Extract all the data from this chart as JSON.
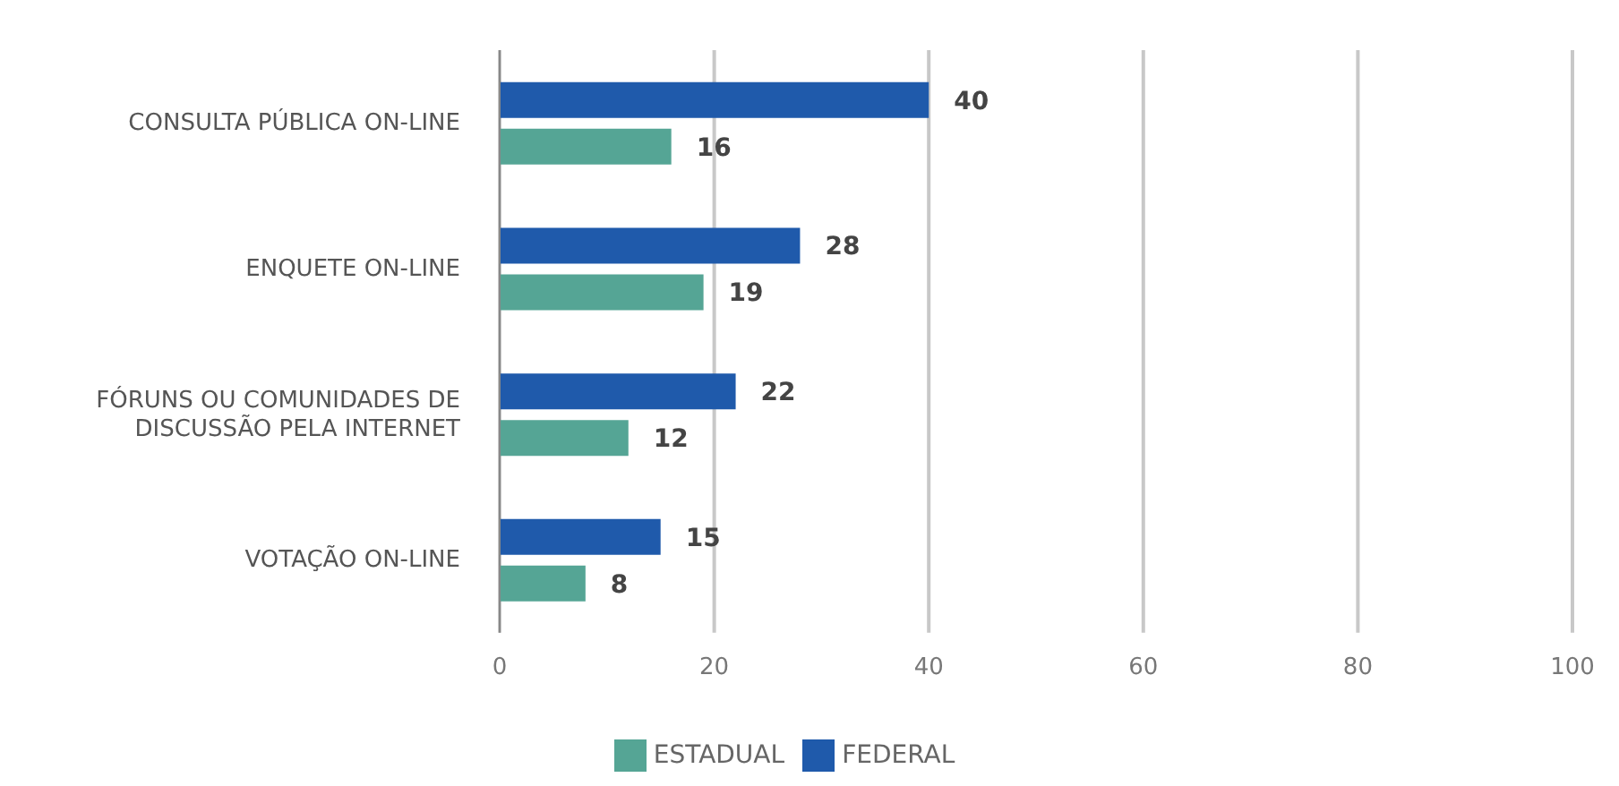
{
  "chart_data": {
    "type": "bar",
    "orientation": "horizontal",
    "categories": [
      "CONSULTA PÚBLICA ON-LINE",
      "ENQUETE ON-LINE",
      "FÓRUNS OU COMUNIDADES DE DISCUSSÃO PELA INTERNET",
      "VOTAÇÃO ON-LINE"
    ],
    "series": [
      {
        "name": "FEDERAL",
        "color": "#1f5aab",
        "values": [
          40,
          28,
          22,
          15
        ]
      },
      {
        "name": "ESTADUAL",
        "color": "#55a595",
        "values": [
          16,
          19,
          12,
          8
        ]
      }
    ],
    "xlim": [
      0,
      100
    ],
    "xticks": [
      0,
      20,
      40,
      60,
      80,
      100
    ],
    "grid": "x",
    "legend": "bottom",
    "data_labels": true
  }
}
